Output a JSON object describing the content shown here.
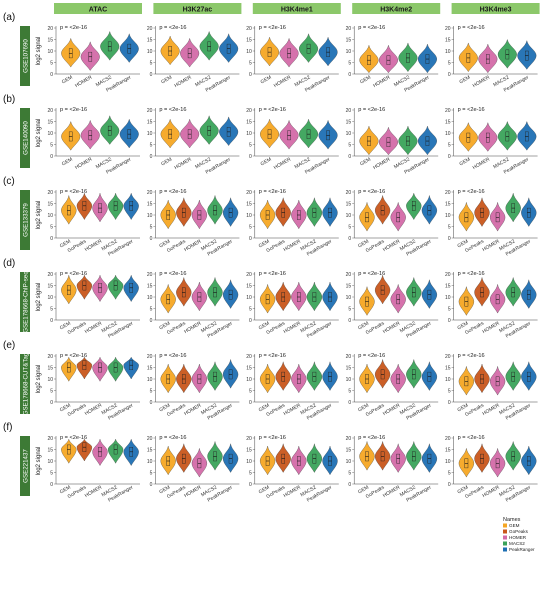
{
  "figure": {
    "marks": [
      "GEM",
      "GoPeaks",
      "HOMER",
      "MACS2",
      "PeakRanger"
    ],
    "colors": {
      "GEM": "#f5a623",
      "GoPeaks": "#c8561b",
      "HOMER": "#d36aa8",
      "MACS2": "#3aa35a",
      "PeakRanger": "#1d6fb3",
      "header_bg": "#8cc86a",
      "row_label_bg": "#3d7a35"
    },
    "y_axis_label": "log2 signal",
    "y_ticks": [
      0,
      5,
      10,
      15,
      20
    ],
    "p_text": "p = <2e-16",
    "p_text_first": "p = <2e-16",
    "p_text_first_col1": "p = <2e-16"
  },
  "chart_data": {
    "type": "violin",
    "columns": [
      "ATAC",
      "H3K27ac",
      "H3K4me1",
      "H3K4me2",
      "H3K4me3"
    ],
    "ylim": [
      0,
      20
    ],
    "legend": {
      "title": "Names",
      "entries": [
        "GEM",
        "GoPeaks",
        "HOMER",
        "MACS2",
        "PeakRanger"
      ],
      "placement": "bottom-right"
    },
    "rows": [
      {
        "panel": "(a)",
        "dataset": "GSE107690",
        "categories": [
          "GEM",
          "HOMER",
          "MACS2",
          "PeakRanger"
        ],
        "medians": [
          [
            9,
            7.5,
            12,
            11
          ],
          [
            10,
            9,
            12,
            11
          ],
          [
            9.5,
            9,
            11,
            9.5
          ],
          [
            6,
            6,
            7,
            6.5
          ],
          [
            7,
            6.5,
            8.5,
            8
          ]
        ]
      },
      {
        "panel": "(b)",
        "dataset": "GSE140090",
        "categories": [
          "GEM",
          "HOMER",
          "MACS2",
          "PeakRanger"
        ],
        "medians": [
          [
            8.5,
            9,
            11,
            9.5
          ],
          [
            9.5,
            9.5,
            11,
            10.5
          ],
          [
            9.5,
            9,
            9.5,
            9
          ],
          [
            6.5,
            6,
            6.5,
            6.5
          ],
          [
            8,
            8,
            8.5,
            8.5
          ]
        ]
      },
      {
        "panel": "(c)",
        "dataset": "GSE133379",
        "categories": [
          "GEM",
          "GoPeaks",
          "HOMER",
          "MACS2",
          "PeakRanger"
        ],
        "medians": [
          [
            12,
            14,
            13,
            14,
            14
          ],
          [
            10,
            11,
            10,
            12,
            11
          ],
          [
            10,
            11,
            10,
            11,
            11
          ],
          [
            9,
            12,
            9,
            14,
            12
          ],
          [
            9,
            11,
            9,
            13,
            11
          ]
        ]
      },
      {
        "panel": "(d)",
        "dataset": "GSE178668-ChIP-seq",
        "categories": [
          "GEM",
          "GoPeaks",
          "HOMER",
          "MACS2",
          "PeakRanger"
        ],
        "medians": [
          [
            13,
            15,
            14,
            15,
            14
          ],
          [
            9,
            12,
            10,
            12,
            11
          ],
          [
            9,
            10,
            10,
            10,
            10
          ],
          [
            8,
            13,
            9,
            12,
            11
          ],
          [
            8,
            12,
            9,
            12,
            11
          ]
        ]
      },
      {
        "panel": "(e)",
        "dataset": "GSE178668-CUT&Tag",
        "categories": [
          "GEM",
          "GoPeaks",
          "HOMER",
          "MACS2",
          "PeakRanger"
        ],
        "medians": [
          [
            15,
            16,
            15,
            15,
            16
          ],
          [
            10,
            10,
            10,
            11,
            12
          ],
          [
            10,
            11,
            10,
            11,
            11
          ],
          [
            10,
            12,
            10,
            12,
            11
          ],
          [
            9,
            10,
            9,
            11,
            11
          ]
        ]
      },
      {
        "panel": "(f)",
        "dataset": "GSE221437",
        "categories": [
          "GEM",
          "GoPeaks",
          "HOMER",
          "MACS2",
          "PeakRanger"
        ],
        "medians": [
          [
            15,
            16,
            14,
            15,
            14
          ],
          [
            10,
            11,
            9,
            12,
            11
          ],
          [
            10,
            11,
            10,
            11,
            10
          ],
          [
            12,
            12,
            11,
            12,
            11
          ],
          [
            9,
            11,
            9,
            12,
            10
          ]
        ]
      }
    ]
  }
}
